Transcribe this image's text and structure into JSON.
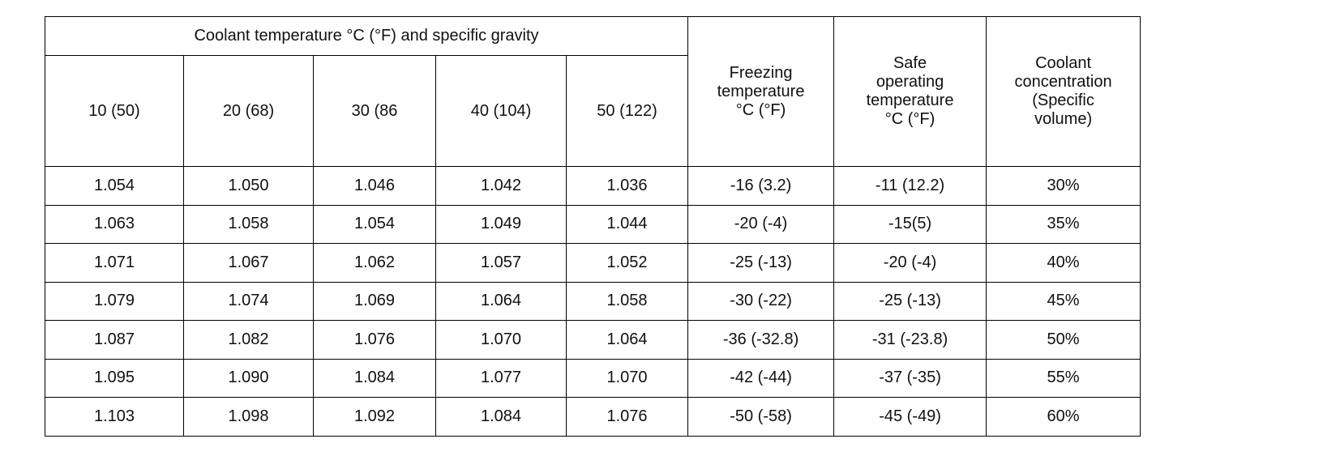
{
  "table": {
    "group_header": "Coolant temperature °C (°F) and specific gravity",
    "temperature_headers": [
      "10 (50)",
      "20 (68)",
      "30 (86",
      "40 (104)",
      "50 (122)"
    ],
    "freezing_header": [
      "Freezing",
      "temperature",
      "°C (°F)"
    ],
    "safe_header": [
      "Safe",
      "operating",
      "temperature",
      "°C (°F)"
    ],
    "concentration_header": [
      "Coolant",
      "concentration",
      "(Specific",
      "volume)"
    ],
    "rows": [
      [
        "1.054",
        "1.050",
        "1.046",
        "1.042",
        "1.036",
        "-16 (3.2)",
        "-11 (12.2)",
        "30%"
      ],
      [
        "1.063",
        "1.058",
        "1.054",
        "1.049",
        "1.044",
        "-20 (-4)",
        "-15(5)",
        "35%"
      ],
      [
        "1.071",
        "1.067",
        "1.062",
        "1.057",
        "1.052",
        "-25 (-13)",
        "-20 (-4)",
        "40%"
      ],
      [
        "1.079",
        "1.074",
        "1.069",
        "1.064",
        "1.058",
        "-30 (-22)",
        "-25 (-13)",
        "45%"
      ],
      [
        "1.087",
        "1.082",
        "1.076",
        "1.070",
        "1.064",
        "-36 (-32.8)",
        "-31 (-23.8)",
        "50%"
      ],
      [
        "1.095",
        "1.090",
        "1.084",
        "1.077",
        "1.070",
        "-42 (-44)",
        "-37 (-35)",
        "55%"
      ],
      [
        "1.103",
        "1.098",
        "1.092",
        "1.084",
        "1.076",
        "-50 (-58)",
        "-45 (-49)",
        "60%"
      ]
    ]
  }
}
